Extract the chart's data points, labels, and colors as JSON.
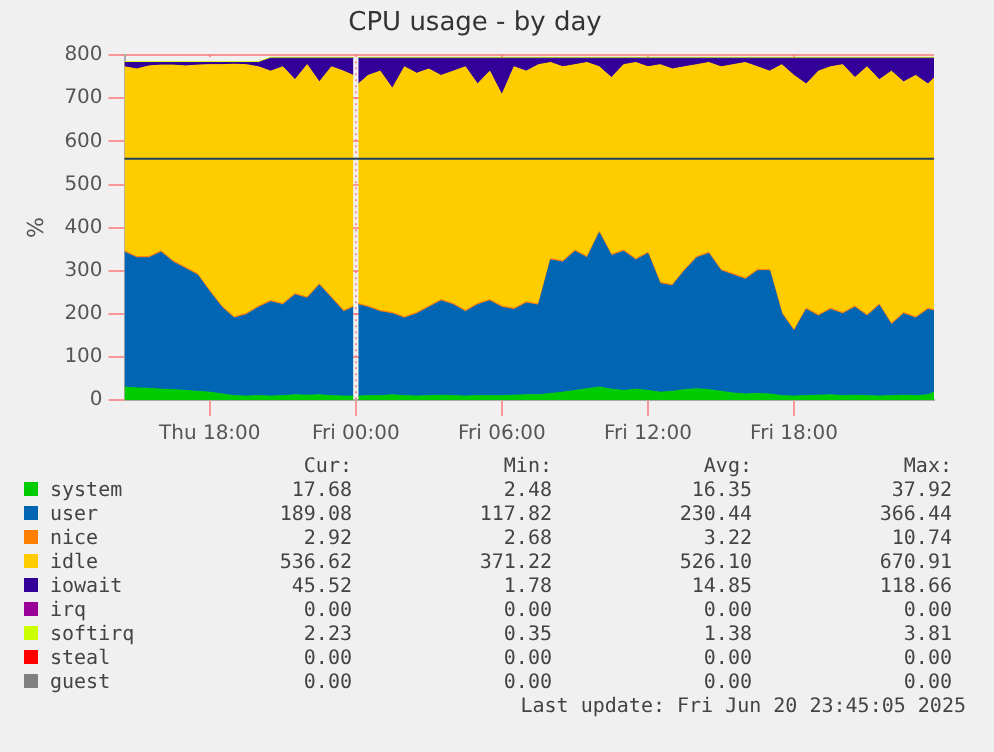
{
  "chart_data": {
    "type": "area",
    "stacked": true,
    "title": "CPU usage - by day",
    "ylabel": "%",
    "x": [
      "2025-06-19T14:30",
      "2025-06-19T15:00",
      "2025-06-19T15:30",
      "2025-06-19T16:00",
      "2025-06-19T16:30",
      "2025-06-19T17:00",
      "2025-06-19T17:30",
      "2025-06-19T18:00",
      "2025-06-19T18:30",
      "2025-06-19T19:00",
      "2025-06-19T19:30",
      "2025-06-19T20:00",
      "2025-06-19T20:30",
      "2025-06-19T21:00",
      "2025-06-19T21:30",
      "2025-06-19T22:00",
      "2025-06-19T22:30",
      "2025-06-19T23:00",
      "2025-06-19T23:30",
      "2025-06-19T23:54",
      "2025-06-20T00:00",
      "2025-06-20T00:06",
      "2025-06-20T00:30",
      "2025-06-20T01:00",
      "2025-06-20T01:30",
      "2025-06-20T02:00",
      "2025-06-20T02:30",
      "2025-06-20T03:00",
      "2025-06-20T03:30",
      "2025-06-20T04:00",
      "2025-06-20T04:30",
      "2025-06-20T05:00",
      "2025-06-20T05:30",
      "2025-06-20T06:00",
      "2025-06-20T06:30",
      "2025-06-20T07:00",
      "2025-06-20T07:30",
      "2025-06-20T08:00",
      "2025-06-20T08:30",
      "2025-06-20T09:00",
      "2025-06-20T09:30",
      "2025-06-20T10:00",
      "2025-06-20T10:30",
      "2025-06-20T11:00",
      "2025-06-20T11:30",
      "2025-06-20T12:00",
      "2025-06-20T12:30",
      "2025-06-20T13:00",
      "2025-06-20T13:30",
      "2025-06-20T14:00",
      "2025-06-20T14:30",
      "2025-06-20T15:00",
      "2025-06-20T15:30",
      "2025-06-20T16:00",
      "2025-06-20T16:30",
      "2025-06-20T17:00",
      "2025-06-20T17:30",
      "2025-06-20T18:00",
      "2025-06-20T18:30",
      "2025-06-20T19:00",
      "2025-06-20T19:30",
      "2025-06-20T20:00",
      "2025-06-20T20:30",
      "2025-06-20T21:00",
      "2025-06-20T21:30",
      "2025-06-20T22:00",
      "2025-06-20T22:30",
      "2025-06-20T23:00",
      "2025-06-20T23:30",
      "2025-06-20T23:45"
    ],
    "xlim": [
      "2025-06-19T14:30",
      "2025-06-20T23:45"
    ],
    "xticks": [
      {
        "value": "2025-06-19T18:00",
        "label": "Thu 18:00"
      },
      {
        "value": "2025-06-20T00:00",
        "label": "Fri 00:00"
      },
      {
        "value": "2025-06-20T06:00",
        "label": "Fri 06:00"
      },
      {
        "value": "2025-06-20T12:00",
        "label": "Fri 12:00"
      },
      {
        "value": "2025-06-20T18:00",
        "label": "Fri 18:00"
      }
    ],
    "ylim": [
      0,
      800
    ],
    "yticks": [
      0,
      100,
      200,
      300,
      400,
      500,
      600,
      700,
      800
    ],
    "grid": true,
    "legend": "bottom",
    "series": [
      {
        "name": "system",
        "color": "#00cc00",
        "values": [
          30,
          28,
          27,
          25,
          24,
          22,
          20,
          18,
          14,
          10,
          9,
          10,
          9,
          10,
          12,
          11,
          12,
          10,
          9,
          9,
          null,
          9,
          10,
          10,
          12,
          10,
          9,
          10,
          11,
          10,
          9,
          10,
          10,
          10,
          11,
          12,
          12,
          15,
          18,
          22,
          26,
          30,
          25,
          22,
          25,
          22,
          18,
          20,
          24,
          26,
          24,
          20,
          16,
          14,
          15,
          14,
          10,
          9,
          10,
          11,
          12,
          10,
          11,
          10,
          9,
          10,
          11,
          10,
          12,
          18
        ]
      },
      {
        "name": "user",
        "color": "#0066b3",
        "values": [
          313,
          302,
          303,
          318,
          296,
          283,
          270,
          233,
          201,
          180,
          189,
          205,
          219,
          211,
          232,
          225,
          255,
          226,
          196,
          206,
          null,
          212,
          205,
          195,
          188,
          180,
          191,
          205,
          219,
          211,
          196,
          211,
          220,
          205,
          199,
          213,
          208,
          310,
          302,
          323,
          304,
          358,
          310,
          323,
          300,
          318,
          252,
          245,
          276,
          304,
          316,
          280,
          274,
          266,
          285,
          286,
          190,
          151,
          200,
          184,
          198,
          190,
          204,
          185,
          211,
          165,
          189,
          180,
          198,
          189
        ]
      },
      {
        "name": "nice",
        "color": "#ff8000",
        "values": [
          3,
          3,
          3,
          3,
          3,
          3,
          3,
          3,
          3,
          3,
          3,
          3,
          3,
          3,
          3,
          3,
          3,
          3,
          3,
          3,
          null,
          3,
          3,
          3,
          3,
          3,
          3,
          3,
          3,
          3,
          3,
          3,
          3,
          3,
          3,
          3,
          3,
          3,
          3,
          3,
          3,
          3,
          3,
          3,
          3,
          3,
          3,
          3,
          3,
          3,
          3,
          3,
          3,
          3,
          3,
          3,
          3,
          3,
          3,
          3,
          3,
          3,
          3,
          3,
          3,
          3,
          3,
          3,
          3,
          3
        ]
      },
      {
        "name": "idle",
        "color": "#ffcc00",
        "values": [
          427,
          435,
          442,
          431,
          454,
          467,
          484,
          524,
          560,
          586,
          577,
          555,
          532,
          549,
          496,
          539,
          468,
          534,
          555,
          535,
          null,
          509,
          535,
          555,
          520,
          580,
          555,
          550,
          520,
          539,
          565,
          509,
          530,
          490,
          560,
          535,
          555,
          455,
          450,
          430,
          450,
          382,
          410,
          430,
          455,
          430,
          505,
          500,
          470,
          445,
          440,
          470,
          485,
          500,
          470,
          460,
          575,
          590,
          520,
          565,
          560,
          575,
          530,
          575,
          520,
          585,
          535,
          560,
          520,
          537
        ]
      },
      {
        "name": "iowait",
        "color": "#330099",
        "values": [
          10,
          15,
          8,
          6,
          6,
          8,
          6,
          5,
          5,
          4,
          5,
          10,
          30,
          20,
          50,
          15,
          55,
          20,
          30,
          40,
          null,
          60,
          40,
          30,
          70,
          20,
          35,
          25,
          40,
          30,
          20,
          60,
          30,
          85,
          20,
          30,
          15,
          10,
          20,
          15,
          10,
          20,
          45,
          15,
          10,
          20,
          15,
          25,
          20,
          15,
          10,
          20,
          15,
          10,
          20,
          30,
          15,
          40,
          60,
          30,
          20,
          15,
          45,
          20,
          50,
          30,
          55,
          40,
          60,
          46
        ]
      },
      {
        "name": "irq",
        "color": "#990099",
        "values": [
          null,
          null,
          null,
          null,
          null,
          null,
          null,
          null,
          null,
          null,
          null,
          null,
          null,
          null,
          null,
          null,
          null,
          null,
          null,
          null,
          null,
          null,
          null,
          null,
          null,
          null,
          null,
          null,
          null,
          null,
          null,
          null,
          null,
          null,
          null,
          null,
          null,
          null,
          null,
          null,
          null,
          null,
          null,
          null,
          null,
          null,
          null,
          null,
          null,
          null,
          null,
          null,
          null,
          null,
          null,
          null,
          null,
          null,
          null,
          null,
          null,
          null,
          null,
          null,
          null,
          null,
          null,
          null,
          null,
          null
        ]
      },
      {
        "name": "softirq",
        "color": "#ccff00",
        "values": [
          2,
          2,
          2,
          2,
          2,
          2,
          2,
          2,
          2,
          2,
          2,
          2,
          2,
          2,
          2,
          2,
          2,
          2,
          2,
          2,
          null,
          2,
          2,
          2,
          2,
          2,
          2,
          2,
          2,
          2,
          2,
          2,
          2,
          2,
          2,
          2,
          2,
          2,
          2,
          2,
          2,
          2,
          2,
          2,
          2,
          2,
          2,
          2,
          2,
          2,
          2,
          2,
          2,
          2,
          2,
          2,
          2,
          2,
          2,
          2,
          2,
          2,
          2,
          2,
          2,
          2,
          2,
          2,
          2,
          2
        ]
      },
      {
        "name": "steal",
        "color": "#ff0000",
        "values": [
          null,
          null,
          null,
          null,
          null,
          null,
          null,
          null,
          null,
          null,
          null,
          null,
          null,
          null,
          null,
          null,
          null,
          null,
          null,
          null,
          null,
          null,
          null,
          null,
          null,
          null,
          null,
          null,
          null,
          null,
          null,
          null,
          null,
          null,
          null,
          null,
          null,
          null,
          null,
          null,
          null,
          null,
          null,
          null,
          null,
          null,
          null,
          null,
          null,
          null,
          null,
          null,
          null,
          null,
          null,
          null,
          null,
          null,
          null,
          null,
          null,
          null,
          null,
          null,
          null,
          null,
          null,
          null,
          null,
          null
        ]
      },
      {
        "name": "guest",
        "color": "#808080",
        "values": [
          null,
          null,
          null,
          null,
          null,
          null,
          null,
          null,
          null,
          null,
          null,
          null,
          null,
          null,
          null,
          null,
          null,
          null,
          null,
          null,
          null,
          null,
          null,
          null,
          null,
          null,
          null,
          null,
          null,
          null,
          null,
          null,
          null,
          null,
          null,
          null,
          null,
          null,
          null,
          null,
          null,
          null,
          null,
          null,
          null,
          null,
          null,
          null,
          null,
          null,
          null,
          null,
          null,
          null,
          null,
          null,
          null,
          null,
          null,
          null,
          null,
          null,
          null,
          null,
          null,
          null,
          null,
          null,
          null,
          null
        ]
      }
    ],
    "ref_lines": [
      {
        "axis": "y",
        "value": 560,
        "color": "#1f3f5f"
      }
    ],
    "annotations": [
      "Cur:",
      "Min:",
      "Avg:",
      "Max:",
      "17.68",
      "2.48",
      "16.35",
      "37.92",
      "189.08",
      "117.82",
      "230.44",
      "366.44",
      "2.92",
      "2.68",
      "3.22",
      "10.74",
      "536.62",
      "371.22",
      "526.10",
      "670.91",
      "45.52",
      "1.78",
      "14.85",
      "118.66",
      "0.00",
      "0.00",
      "0.00",
      "0.00",
      "2.23",
      "0.35",
      "1.38",
      "3.81",
      "0.00",
      "0.00",
      "0.00",
      "0.00",
      "0.00",
      "0.00",
      "0.00",
      "0.00",
      "Last update: Fri Jun 20 23:45:05 2025"
    ]
  }
}
